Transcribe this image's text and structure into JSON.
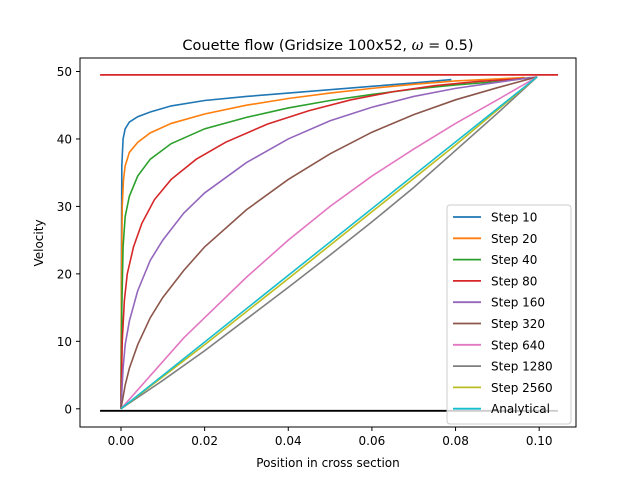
{
  "chart_data": {
    "type": "line",
    "title": "Couette flow (Gridsize 100x52, ω = 0.5)",
    "title_prefix": "Couette flow (Gridsize 100x52, ",
    "title_omega": "ω",
    "title_suffix": " = 0.5)",
    "xlabel": "Position in cross section",
    "ylabel": "Velocity",
    "xlim": [
      -0.0098,
      0.1088
    ],
    "ylim": [
      -2.7,
      52.0
    ],
    "xticks": [
      {
        "v": 0.0,
        "label": "0.00"
      },
      {
        "v": 0.02,
        "label": "0.02"
      },
      {
        "v": 0.04,
        "label": "0.04"
      },
      {
        "v": 0.06,
        "label": "0.06"
      },
      {
        "v": 0.08,
        "label": "0.08"
      },
      {
        "v": 0.1,
        "label": "0.10"
      }
    ],
    "yticks": [
      {
        "v": 0,
        "label": "0"
      },
      {
        "v": 10,
        "label": "10"
      },
      {
        "v": 20,
        "label": "20"
      },
      {
        "v": 30,
        "label": "30"
      },
      {
        "v": 40,
        "label": "40"
      },
      {
        "v": 50,
        "label": "50"
      }
    ],
    "grid": false,
    "legend_position": "lower right",
    "series": [
      {
        "name": "Step 10",
        "color": "#1f77b4",
        "points": [
          [
            0,
            0
          ],
          [
            0.0001,
            20
          ],
          [
            0.0002,
            36
          ],
          [
            0.0005,
            40
          ],
          [
            0.001,
            41.5
          ],
          [
            0.002,
            42.5
          ],
          [
            0.004,
            43.3
          ],
          [
            0.007,
            44
          ],
          [
            0.012,
            44.9
          ],
          [
            0.02,
            45.7
          ],
          [
            0.03,
            46.3
          ],
          [
            0.04,
            46.8
          ],
          [
            0.05,
            47.3
          ],
          [
            0.06,
            47.8
          ],
          [
            0.07,
            48.3
          ],
          [
            0.079,
            48.8
          ]
        ]
      },
      {
        "name": "Step 20",
        "color": "#ff7f0e",
        "points": [
          [
            0,
            0
          ],
          [
            0.0001,
            18
          ],
          [
            0.0003,
            30
          ],
          [
            0.0006,
            34
          ],
          [
            0.001,
            36
          ],
          [
            0.002,
            38
          ],
          [
            0.004,
            39.5
          ],
          [
            0.007,
            40.9
          ],
          [
            0.012,
            42.3
          ],
          [
            0.02,
            43.7
          ],
          [
            0.03,
            45
          ],
          [
            0.04,
            46
          ],
          [
            0.05,
            46.8
          ],
          [
            0.06,
            47.5
          ],
          [
            0.07,
            48.1
          ],
          [
            0.08,
            48.6
          ],
          [
            0.09,
            48.9
          ],
          [
            0.0965,
            49.1
          ]
        ]
      },
      {
        "name": "Step 40",
        "color": "#2ca02c",
        "points": [
          [
            0,
            0
          ],
          [
            0.0002,
            15
          ],
          [
            0.0005,
            24
          ],
          [
            0.001,
            28.5
          ],
          [
            0.002,
            31.5
          ],
          [
            0.004,
            34.5
          ],
          [
            0.007,
            37
          ],
          [
            0.012,
            39.3
          ],
          [
            0.02,
            41.5
          ],
          [
            0.03,
            43.2
          ],
          [
            0.04,
            44.6
          ],
          [
            0.05,
            45.7
          ],
          [
            0.06,
            46.6
          ],
          [
            0.07,
            47.4
          ],
          [
            0.08,
            48
          ],
          [
            0.09,
            48.5
          ],
          [
            0.098,
            49.1
          ]
        ]
      },
      {
        "name": "Step 80",
        "color": "#d62728",
        "points": [
          [
            0,
            0
          ],
          [
            0.0003,
            10
          ],
          [
            0.0008,
            16
          ],
          [
            0.0015,
            20
          ],
          [
            0.003,
            24
          ],
          [
            0.005,
            27.5
          ],
          [
            0.008,
            31
          ],
          [
            0.012,
            34
          ],
          [
            0.018,
            37
          ],
          [
            0.025,
            39.5
          ],
          [
            0.035,
            42.2
          ],
          [
            0.045,
            44.2
          ],
          [
            0.055,
            45.8
          ],
          [
            0.065,
            47
          ],
          [
            0.075,
            47.9
          ],
          [
            0.085,
            48.5
          ],
          [
            0.095,
            48.9
          ],
          [
            0.099,
            49.1
          ]
        ]
      },
      {
        "name": "Step 160",
        "color": "#9467bd",
        "points": [
          [
            0,
            0
          ],
          [
            0.0005,
            6
          ],
          [
            0.001,
            9.5
          ],
          [
            0.002,
            13
          ],
          [
            0.004,
            17.5
          ],
          [
            0.007,
            22
          ],
          [
            0.01,
            25
          ],
          [
            0.015,
            29
          ],
          [
            0.02,
            32
          ],
          [
            0.03,
            36.5
          ],
          [
            0.04,
            40
          ],
          [
            0.05,
            42.7
          ],
          [
            0.06,
            44.7
          ],
          [
            0.07,
            46.3
          ],
          [
            0.08,
            47.5
          ],
          [
            0.09,
            48.4
          ],
          [
            0.0995,
            49.2
          ]
        ]
      },
      {
        "name": "Step 320",
        "color": "#8c564b",
        "points": [
          [
            0,
            0
          ],
          [
            0.001,
            3.5
          ],
          [
            0.002,
            6
          ],
          [
            0.004,
            9.5
          ],
          [
            0.007,
            13.5
          ],
          [
            0.01,
            16.5
          ],
          [
            0.015,
            20.5
          ],
          [
            0.02,
            24
          ],
          [
            0.03,
            29.5
          ],
          [
            0.04,
            34
          ],
          [
            0.05,
            37.8
          ],
          [
            0.06,
            41
          ],
          [
            0.07,
            43.6
          ],
          [
            0.08,
            45.8
          ],
          [
            0.09,
            47.6
          ],
          [
            0.0995,
            49.2
          ]
        ]
      },
      {
        "name": "Step 640",
        "color": "#e377c2",
        "points": [
          [
            0,
            0
          ],
          [
            0.005,
            3.5
          ],
          [
            0.01,
            7
          ],
          [
            0.015,
            10.5
          ],
          [
            0.02,
            13.5
          ],
          [
            0.03,
            19.5
          ],
          [
            0.04,
            25
          ],
          [
            0.05,
            30
          ],
          [
            0.06,
            34.5
          ],
          [
            0.07,
            38.5
          ],
          [
            0.08,
            42.3
          ],
          [
            0.09,
            45.8
          ],
          [
            0.0995,
            49.2
          ]
        ]
      },
      {
        "name": "Step 1280",
        "color": "#7f7f7f",
        "points": [
          [
            0,
            0
          ],
          [
            0.01,
            4.2
          ],
          [
            0.02,
            8.6
          ],
          [
            0.03,
            13.3
          ],
          [
            0.04,
            18
          ],
          [
            0.05,
            22.8
          ],
          [
            0.06,
            27.7
          ],
          [
            0.07,
            32.8
          ],
          [
            0.08,
            38.3
          ],
          [
            0.09,
            43.8
          ],
          [
            0.0995,
            49.2
          ]
        ]
      },
      {
        "name": "Step 2560",
        "color": "#bcbd22",
        "points": [
          [
            0,
            0
          ],
          [
            0.02,
            9.5
          ],
          [
            0.04,
            19.3
          ],
          [
            0.06,
            29.2
          ],
          [
            0.08,
            39.1
          ],
          [
            0.0995,
            49.2
          ]
        ]
      },
      {
        "name": "Analytical",
        "color": "#17becf",
        "points": [
          [
            0,
            0
          ],
          [
            0.0995,
            49.2
          ]
        ]
      }
    ],
    "extra_lines": [
      {
        "color": "#d62728",
        "points": [
          [
            -0.005,
            49.5
          ],
          [
            0.1045,
            49.5
          ]
        ]
      },
      {
        "color": "#000000",
        "points": [
          [
            -0.005,
            -0.3
          ],
          [
            0.1045,
            -0.3
          ]
        ]
      }
    ]
  }
}
